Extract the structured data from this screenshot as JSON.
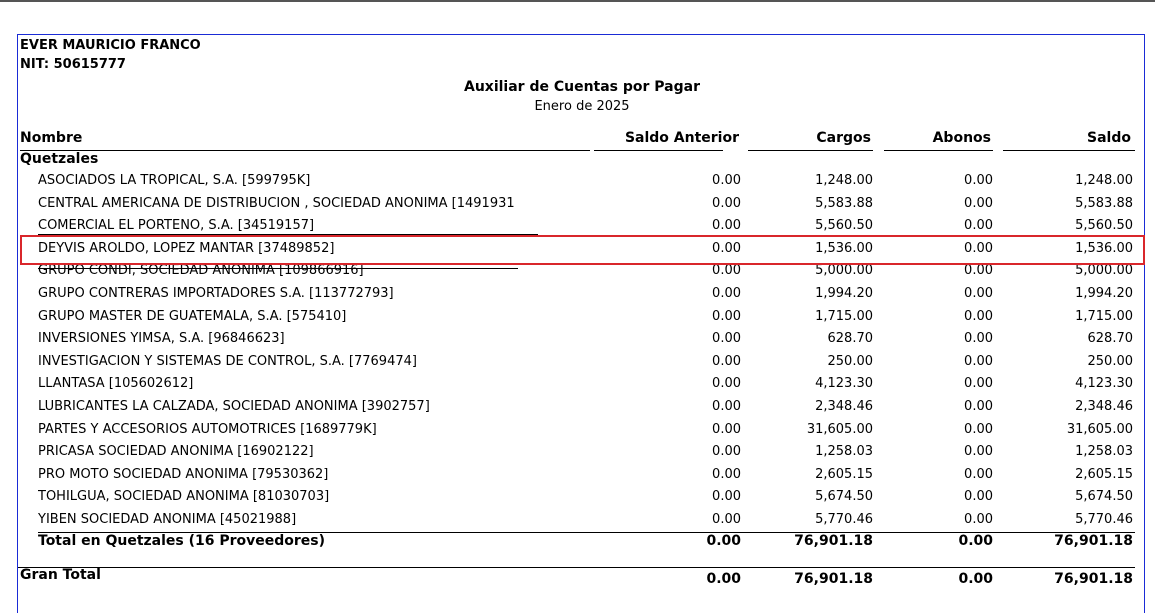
{
  "report": {
    "company": "EVER MAURICIO FRANCO",
    "nit": "NIT: 50615777",
    "title": "Auxiliar de Cuentas por Pagar",
    "period": "Enero de 2025"
  },
  "columns": {
    "name": "Nombre",
    "prev": "Saldo Anterior",
    "charges": "Cargos",
    "payments": "Abonos",
    "balance": "Saldo"
  },
  "section": {
    "label": "Quetzales",
    "rows": [
      {
        "name": "ASOCIADOS LA TROPICAL, S.A. [599795K]",
        "prev": "0.00",
        "charges": "1,248.00",
        "payments": "0.00",
        "balance": "1,248.00"
      },
      {
        "name": "CENTRAL AMERICANA DE DISTRIBUCION , SOCIEDAD ANONIMA [1491931",
        "prev": "0.00",
        "charges": "5,583.88",
        "payments": "0.00",
        "balance": "5,583.88"
      },
      {
        "name": "COMERCIAL EL PORTEÑO, S.A. [34519157]",
        "prev": "0.00",
        "charges": "5,560.50",
        "payments": "0.00",
        "balance": "5,560.50"
      },
      {
        "name": "DEYVIS AROLDO, LÓPEZ MANTAR [37489852]",
        "prev": "0.00",
        "charges": "1,536.00",
        "payments": "0.00",
        "balance": "1,536.00"
      },
      {
        "name": "GRUPO CONDI, SOCIEDAD ANONIMA [109866916]",
        "prev": "0.00",
        "charges": "5,000.00",
        "payments": "0.00",
        "balance": "5,000.00"
      },
      {
        "name": "GRUPO CONTRERAS IMPORTADORES S.A. [113772793]",
        "prev": "0.00",
        "charges": "1,994.20",
        "payments": "0.00",
        "balance": "1,994.20"
      },
      {
        "name": "GRUPO MASTER DE GUATEMALA, S.A. [575410]",
        "prev": "0.00",
        "charges": "1,715.00",
        "payments": "0.00",
        "balance": "1,715.00"
      },
      {
        "name": "INVERSIONES YIMSA, S.A. [96846623]",
        "prev": "0.00",
        "charges": "628.70",
        "payments": "0.00",
        "balance": "628.70"
      },
      {
        "name": "INVESTIGACION Y SISTEMAS DE CONTROL, S.A. [7769474]",
        "prev": "0.00",
        "charges": "250.00",
        "payments": "0.00",
        "balance": "250.00"
      },
      {
        "name": "LLANTASA [105602612]",
        "prev": "0.00",
        "charges": "4,123.30",
        "payments": "0.00",
        "balance": "4,123.30"
      },
      {
        "name": "LUBRICANTES LA CALZADA, SOCIEDAD ANONIMA [3902757]",
        "prev": "0.00",
        "charges": "2,348.46",
        "payments": "0.00",
        "balance": "2,348.46"
      },
      {
        "name": "PARTES Y ACCESORIOS AUTOMOTRICES [1689779K]",
        "prev": "0.00",
        "charges": "31,605.00",
        "payments": "0.00",
        "balance": "31,605.00"
      },
      {
        "name": "PRICASA SOCIEDAD ANONIMA [16902122]",
        "prev": "0.00",
        "charges": "1,258.03",
        "payments": "0.00",
        "balance": "1,258.03"
      },
      {
        "name": "PRO MOTO SOCIEDAD ANONIMA [79530362]",
        "prev": "0.00",
        "charges": "2,605.15",
        "payments": "0.00",
        "balance": "2,605.15"
      },
      {
        "name": "TOHILGUA, SOCIEDAD ANONIMA [81030703]",
        "prev": "0.00",
        "charges": "5,674.50",
        "payments": "0.00",
        "balance": "5,674.50"
      },
      {
        "name": "YIBEN SOCIEDAD ANONIMA [45021988]",
        "prev": "0.00",
        "charges": "5,770.46",
        "payments": "0.00",
        "balance": "5,770.46"
      }
    ],
    "total": {
      "label": "Total en Quetzales (16 Proveedores)",
      "prev": "0.00",
      "charges": "76,901.18",
      "payments": "0.00",
      "balance": "76,901.18"
    }
  },
  "grand_total": {
    "label": "Gran Total",
    "prev": "0.00",
    "charges": "76,901.18",
    "payments": "0.00",
    "balance": "76,901.18"
  },
  "highlight_color": "#d9262b"
}
